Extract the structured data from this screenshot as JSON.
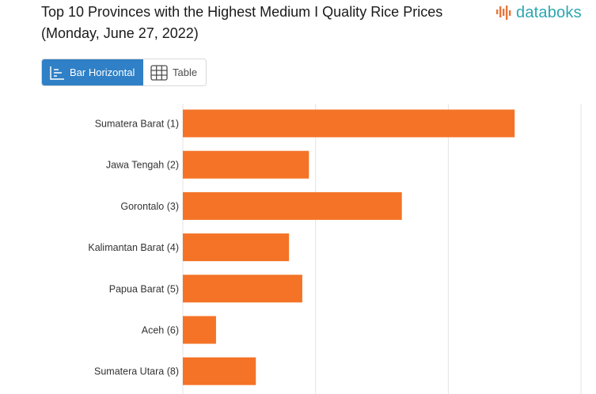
{
  "header": {
    "title": "Top 10 Provinces with the Highest Medium I Quality Rice Prices (Monday, June 27, 2022)"
  },
  "logo": {
    "text": "databoks",
    "color": "#2aa7b0",
    "mark_color": "#e8763a"
  },
  "view_switcher": {
    "active_label": "Bar Horizontal",
    "inactive_label": "Table",
    "active_color": "#2f80c6"
  },
  "chart_data": {
    "type": "bar",
    "orientation": "horizontal",
    "categories": [
      "Sumatera Barat (1)",
      "Jawa Tengah (2)",
      "Gorontalo (3)",
      "Kalimantan Barat (4)",
      "Papua Barat (5)",
      "Aceh (6)",
      "Sumatera Utara (8)"
    ],
    "values": [
      14250,
      12700,
      13400,
      12550,
      12650,
      12000,
      12300
    ],
    "xlim": [
      11750,
      15000
    ],
    "gridlines": [
      11750,
      12750,
      13750,
      14750
    ],
    "bar_color": "#f47326",
    "grid": true
  }
}
